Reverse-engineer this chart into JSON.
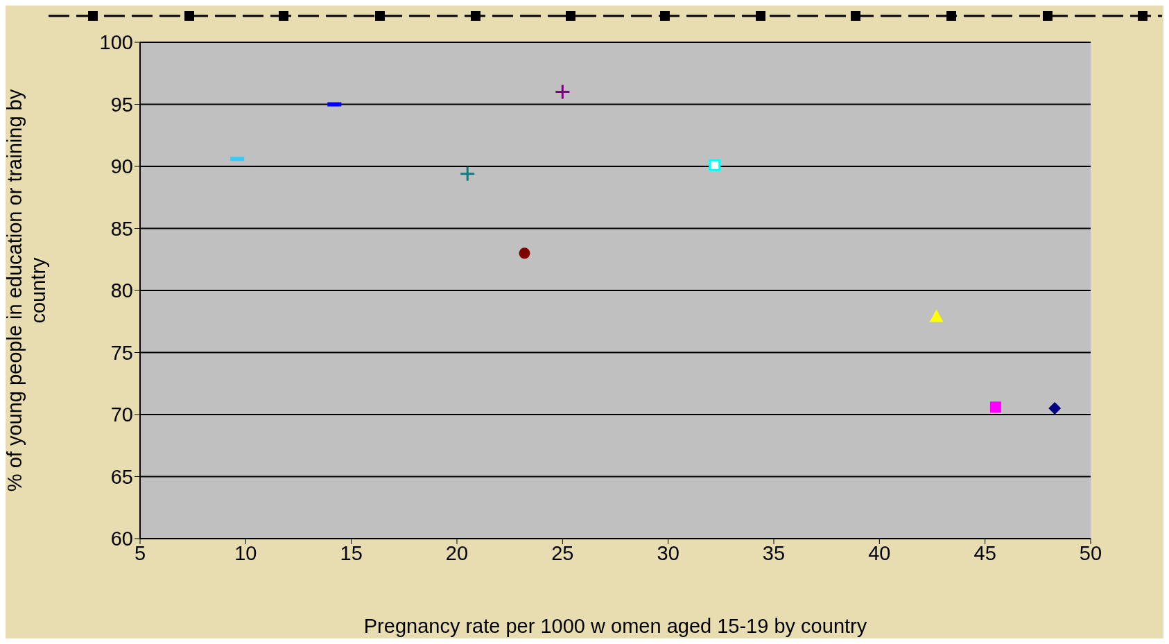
{
  "chart_data": {
    "type": "scatter",
    "xlabel": "Pregnancy rate per 1000 w omen aged 15-19 by country",
    "ylabel": "% of young people in education or training by country",
    "xlim": [
      5,
      50
    ],
    "xticks": [
      5,
      10,
      15,
      20,
      25,
      30,
      35,
      40,
      45,
      50
    ],
    "ylim": [
      60,
      100
    ],
    "yticks": [
      60,
      65,
      70,
      75,
      80,
      85,
      90,
      95,
      100
    ],
    "grid": "y",
    "legend": false,
    "series": [
      {
        "color": "#33ccff",
        "x": [
          9.6
        ],
        "values": [
          90.6
        ]
      },
      {
        "color": "#0000ff",
        "x": [
          14.2
        ],
        "values": [
          95.0
        ]
      },
      {
        "color": "#008080",
        "marker": "cross",
        "x": [
          20.5
        ],
        "values": [
          89.4
        ]
      },
      {
        "color": "#800000",
        "marker": "circle",
        "x": [
          23.2
        ],
        "values": [
          83.0
        ]
      },
      {
        "color": "#800080",
        "marker": "cross",
        "x": [
          25.0
        ],
        "values": [
          96.0
        ]
      },
      {
        "color": "#00ffff",
        "marker": "square",
        "x": [
          32.2
        ],
        "values": [
          90.1
        ]
      },
      {
        "color": "#ffff00",
        "marker": "triangle",
        "x": [
          42.7
        ],
        "values": [
          77.9
        ]
      },
      {
        "color": "#ff00ff",
        "marker": "square",
        "x": [
          45.5
        ],
        "values": [
          70.6
        ]
      },
      {
        "color": "#000080",
        "marker": "diamond",
        "x": [
          48.3
        ],
        "values": [
          70.5
        ]
      }
    ]
  }
}
